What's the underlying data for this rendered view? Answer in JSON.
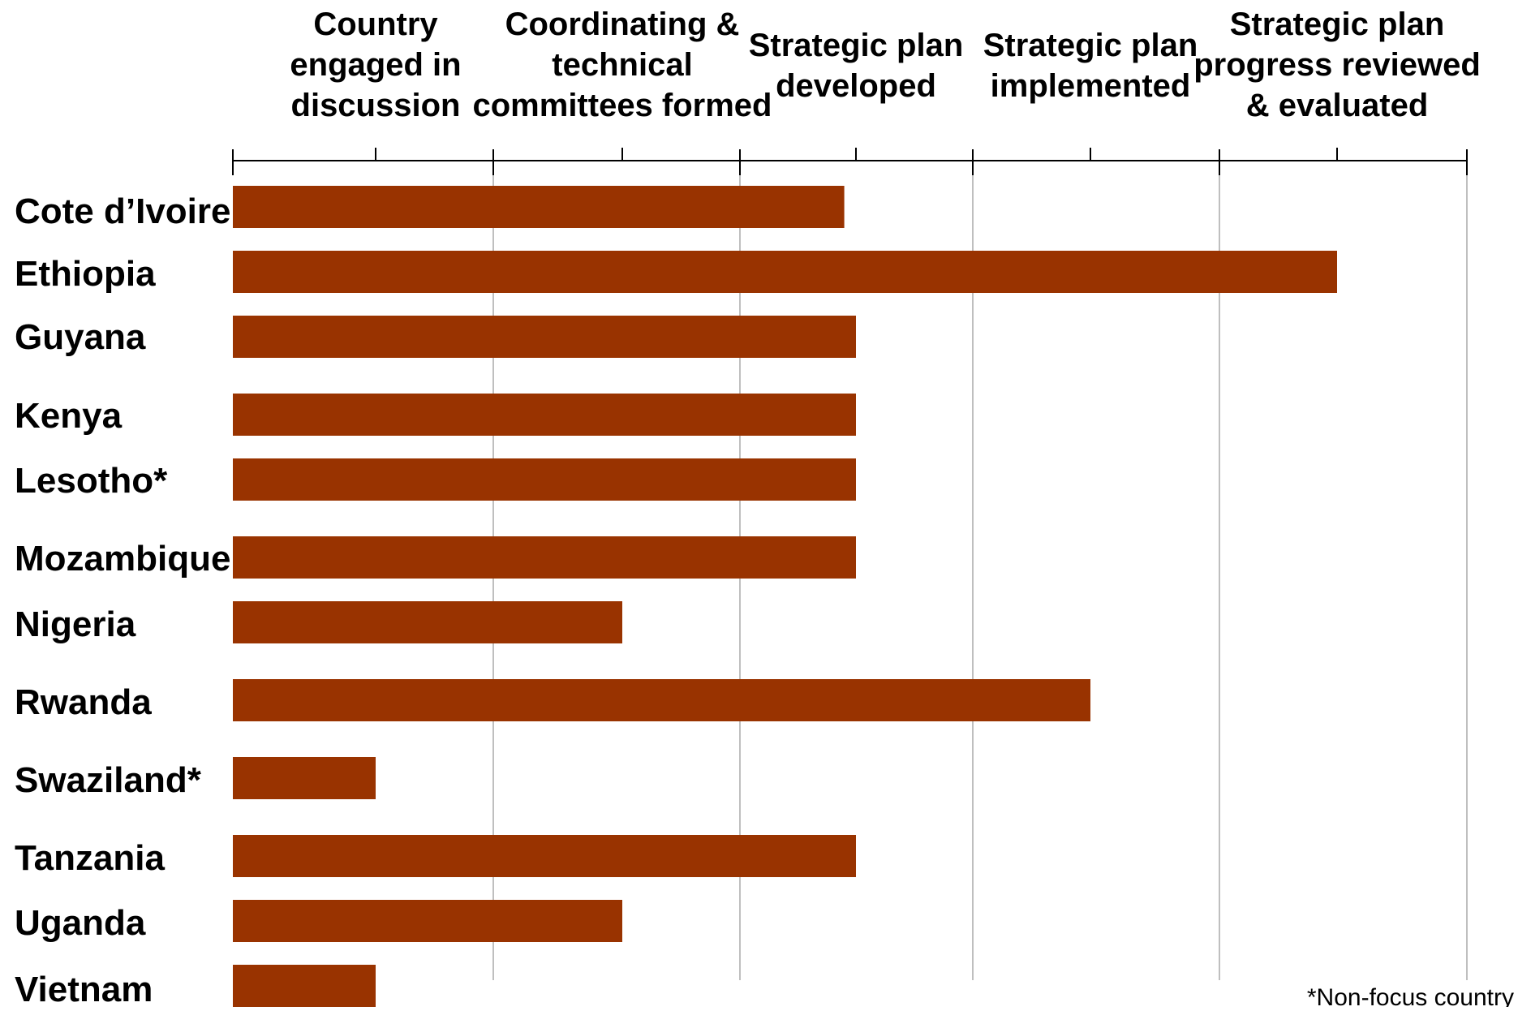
{
  "chart_data": {
    "type": "bar",
    "orientation": "horizontal",
    "title": "",
    "xlabel": "",
    "ylabel": "",
    "stages": [
      "Country engaged in discussion",
      "Coordinating & technical committees formed",
      "Strategic plan developed",
      "Strategic plan implemented",
      "Strategic plan progress reviewed & evaluated"
    ],
    "stage_label_lines": [
      [
        "Country",
        "engaged in",
        "discussion"
      ],
      [
        "Coordinating &",
        "technical",
        "committees formed"
      ],
      [
        "Strategic plan",
        "developed"
      ],
      [
        "Strategic plan",
        "implemented"
      ],
      [
        "Strategic plan",
        "progress reviewed",
        "& evaluated"
      ]
    ],
    "categories": [
      "Cote d’Ivoire",
      "Ethiopia",
      "Guyana",
      "Kenya",
      "Lesotho*",
      "Mozambique",
      "Nigeria",
      "Rwanda",
      "Swaziland*",
      "Tanzania",
      "Uganda",
      "Vietnam"
    ],
    "values": [
      2.95,
      5,
      3,
      3,
      3,
      3,
      2,
      4,
      1,
      3,
      2,
      1
    ],
    "value_note": "stage reached (1 = Country engaged in discussion ... 5 = Strategic plan progress reviewed & evaluated)",
    "xlim": [
      0,
      5
    ],
    "grid": true,
    "bar_color": "#993300",
    "footnote": "*Non-focus country"
  }
}
